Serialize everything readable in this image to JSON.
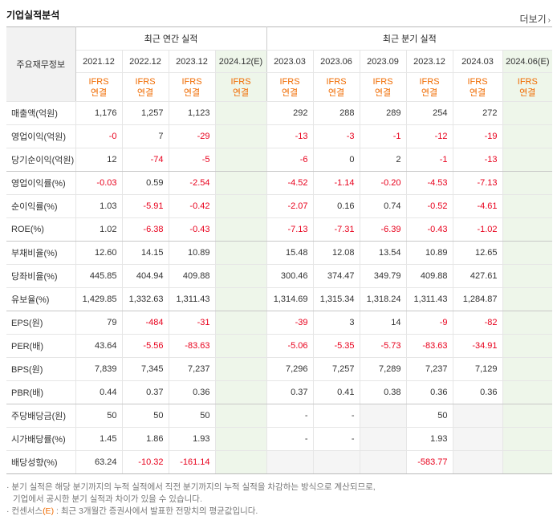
{
  "title": "기업실적분석",
  "more_label": "더보기",
  "row_header": "주요재무정보",
  "annual_group": "최근 연간 실적",
  "quarter_group": "최근 분기 실적",
  "annual_periods": [
    "2021.12",
    "2022.12",
    "2023.12",
    "2024.12(E)"
  ],
  "quarter_periods": [
    "2023.03",
    "2023.06",
    "2023.09",
    "2023.12",
    "2024.03",
    "2024.06(E)"
  ],
  "ifrs_line1": "IFRS",
  "ifrs_line2": "연결",
  "rows": [
    {
      "label": "매출액(억원)",
      "values": [
        "1,176",
        "1,257",
        "1,123",
        "",
        "292",
        "288",
        "289",
        "254",
        "272",
        ""
      ]
    },
    {
      "label": "영업이익(억원)",
      "values": [
        "-0",
        "7",
        "-29",
        "",
        "-13",
        "-3",
        "-1",
        "-12",
        "-19",
        ""
      ]
    },
    {
      "label": "당기순이익(억원)",
      "values": [
        "12",
        "-74",
        "-5",
        "",
        "-6",
        "0",
        "2",
        "-1",
        "-13",
        ""
      ]
    },
    {
      "label": "영업이익률(%)",
      "values": [
        "-0.03",
        "0.59",
        "-2.54",
        "",
        "-4.52",
        "-1.14",
        "-0.20",
        "-4.53",
        "-7.13",
        ""
      ]
    },
    {
      "label": "순이익률(%)",
      "values": [
        "1.03",
        "-5.91",
        "-0.42",
        "",
        "-2.07",
        "0.16",
        "0.74",
        "-0.52",
        "-4.61",
        ""
      ]
    },
    {
      "label": "ROE(%)",
      "values": [
        "1.02",
        "-6.38",
        "-0.43",
        "",
        "-7.13",
        "-7.31",
        "-6.39",
        "-0.43",
        "-1.02",
        ""
      ]
    },
    {
      "label": "부채비율(%)",
      "values": [
        "12.60",
        "14.15",
        "10.89",
        "",
        "15.48",
        "12.08",
        "13.54",
        "10.89",
        "12.65",
        ""
      ]
    },
    {
      "label": "당좌비율(%)",
      "values": [
        "445.85",
        "404.94",
        "409.88",
        "",
        "300.46",
        "374.47",
        "349.79",
        "409.88",
        "427.61",
        ""
      ]
    },
    {
      "label": "유보율(%)",
      "values": [
        "1,429.85",
        "1,332.63",
        "1,311.43",
        "",
        "1,314.69",
        "1,315.34",
        "1,318.24",
        "1,311.43",
        "1,284.87",
        ""
      ]
    },
    {
      "label": "EPS(원)",
      "values": [
        "79",
        "-484",
        "-31",
        "",
        "-39",
        "3",
        "14",
        "-9",
        "-82",
        ""
      ]
    },
    {
      "label": "PER(배)",
      "values": [
        "43.64",
        "-5.56",
        "-83.63",
        "",
        "-5.06",
        "-5.35",
        "-5.73",
        "-83.63",
        "-34.91",
        ""
      ]
    },
    {
      "label": "BPS(원)",
      "values": [
        "7,839",
        "7,345",
        "7,237",
        "",
        "7,296",
        "7,257",
        "7,289",
        "7,237",
        "7,129",
        ""
      ]
    },
    {
      "label": "PBR(배)",
      "values": [
        "0.44",
        "0.37",
        "0.36",
        "",
        "0.37",
        "0.41",
        "0.38",
        "0.36",
        "0.36",
        ""
      ]
    },
    {
      "label": "주당배당금(원)",
      "values": [
        "50",
        "50",
        "50",
        "",
        "-",
        "-",
        "",
        "50",
        "",
        ""
      ]
    },
    {
      "label": "시가배당률(%)",
      "values": [
        "1.45",
        "1.86",
        "1.93",
        "",
        "-",
        "-",
        "",
        "1.93",
        "",
        ""
      ]
    },
    {
      "label": "배당성향(%)",
      "values": [
        "63.24",
        "-10.32",
        "-161.14",
        "",
        "",
        "",
        "",
        "-583.77",
        "",
        ""
      ]
    }
  ],
  "notes": {
    "line1": "분기 실적은 해당 분기까지의 누적 실적에서 직전 분기까지의 누적 실적을 차감하는 방식으로 계산되므로,",
    "line2": "기업에서 공시한 분기 실적과 차이가 있을 수 있습니다.",
    "line3_prefix": "컨센서스",
    "line3_e": "(E)",
    "line3_suffix": ": 최근 3개월간 증권사에서 발표한 전망치의 평균값입니다."
  },
  "colors": {
    "negative": "#e8001c",
    "ifrs": "#f06b00",
    "estimate_bg": "#eef6ea",
    "empty_bg": "#f5f5f5"
  }
}
